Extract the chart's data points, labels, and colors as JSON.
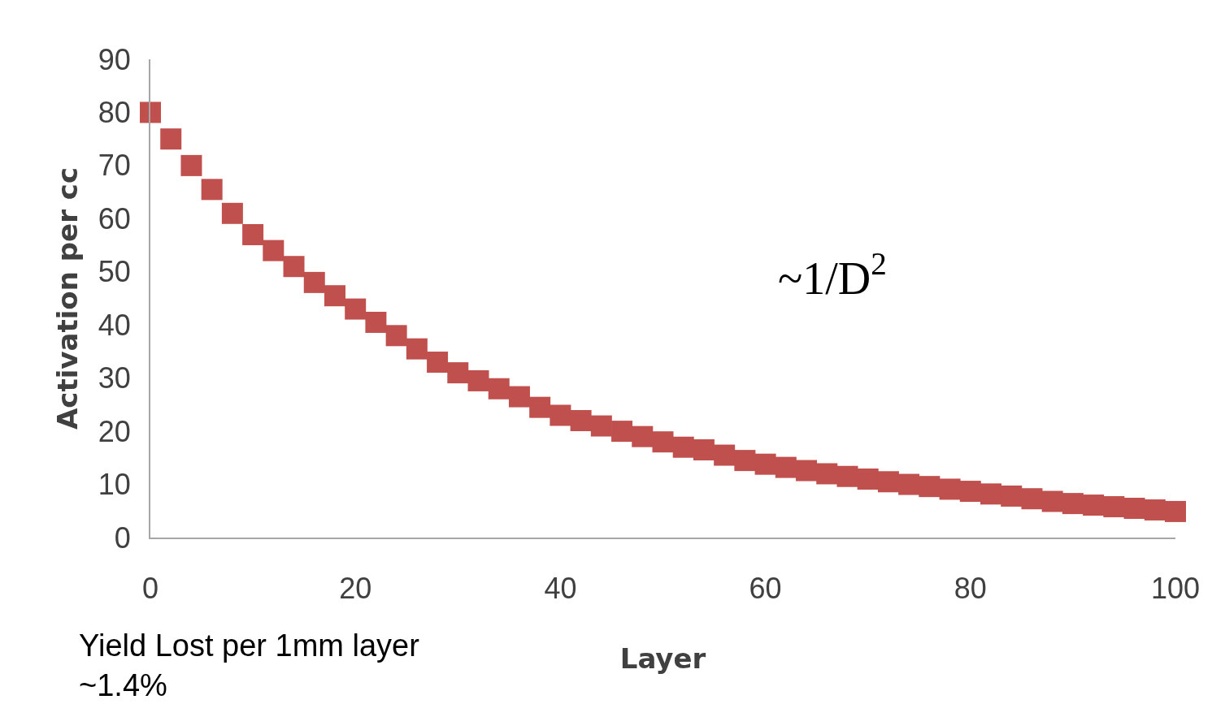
{
  "chart_data": {
    "type": "scatter",
    "xlabel": "Layer",
    "ylabel": "Activation per cc",
    "x": [
      0,
      2,
      4,
      6,
      8,
      10,
      12,
      14,
      16,
      18,
      20,
      22,
      24,
      26,
      28,
      30,
      32,
      34,
      36,
      38,
      40,
      42,
      44,
      46,
      48,
      50,
      52,
      54,
      56,
      58,
      60,
      62,
      64,
      66,
      68,
      70,
      72,
      74,
      76,
      78,
      80,
      82,
      84,
      86,
      88,
      90,
      92,
      94,
      96,
      98,
      100
    ],
    "series": [
      {
        "color": "#c0504d",
        "values": [
          80,
          75,
          70,
          65.5,
          61,
          57,
          54,
          51,
          48,
          45.5,
          43,
          40.5,
          38,
          35.5,
          33,
          31,
          29.5,
          28,
          26.5,
          24.5,
          23,
          22,
          21,
          20,
          19,
          18,
          17,
          16.5,
          15.5,
          14.5,
          13.8,
          13.2,
          12.6,
          12,
          11.5,
          11,
          10.5,
          10,
          9.6,
          9.1,
          8.7,
          8.2,
          7.8,
          7.3,
          6.8,
          6.4,
          6.1,
          5.8,
          5.5,
          5.2,
          4.9
        ]
      }
    ],
    "marker": "square",
    "xlim": [
      0,
      100
    ],
    "xticks": [
      0,
      20,
      40,
      60,
      80,
      100
    ],
    "ylim": [
      0,
      90
    ],
    "yticks": [
      0,
      10,
      20,
      30,
      40,
      50,
      60,
      70,
      80,
      90
    ],
    "annotations": [
      "~1/D$^{2}$",
      "Yield Lost per 1mm layer\n~1.4%"
    ]
  }
}
